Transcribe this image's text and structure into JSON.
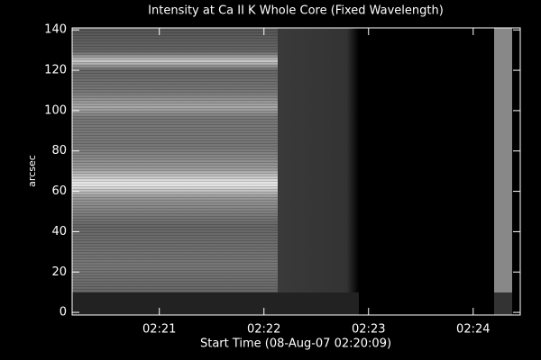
{
  "chart_data": {
    "type": "image",
    "title": "Intensity at Ca II K Whole Core (Fixed Wavelength)",
    "xlabel": "Start Time (08-Aug-07 02:20:09)",
    "ylabel": "arcsec",
    "xlim": [
      10,
      267
    ],
    "xticks": [
      {
        "value": 60,
        "label": "02:21"
      },
      {
        "value": 120,
        "label": "02:22"
      },
      {
        "value": 180,
        "label": "02:23"
      },
      {
        "value": 240,
        "label": "02:24"
      }
    ],
    "ylim": [
      -1.3,
      141
    ],
    "yticks": [
      0,
      20,
      40,
      60,
      80,
      100,
      120,
      140
    ]
  }
}
